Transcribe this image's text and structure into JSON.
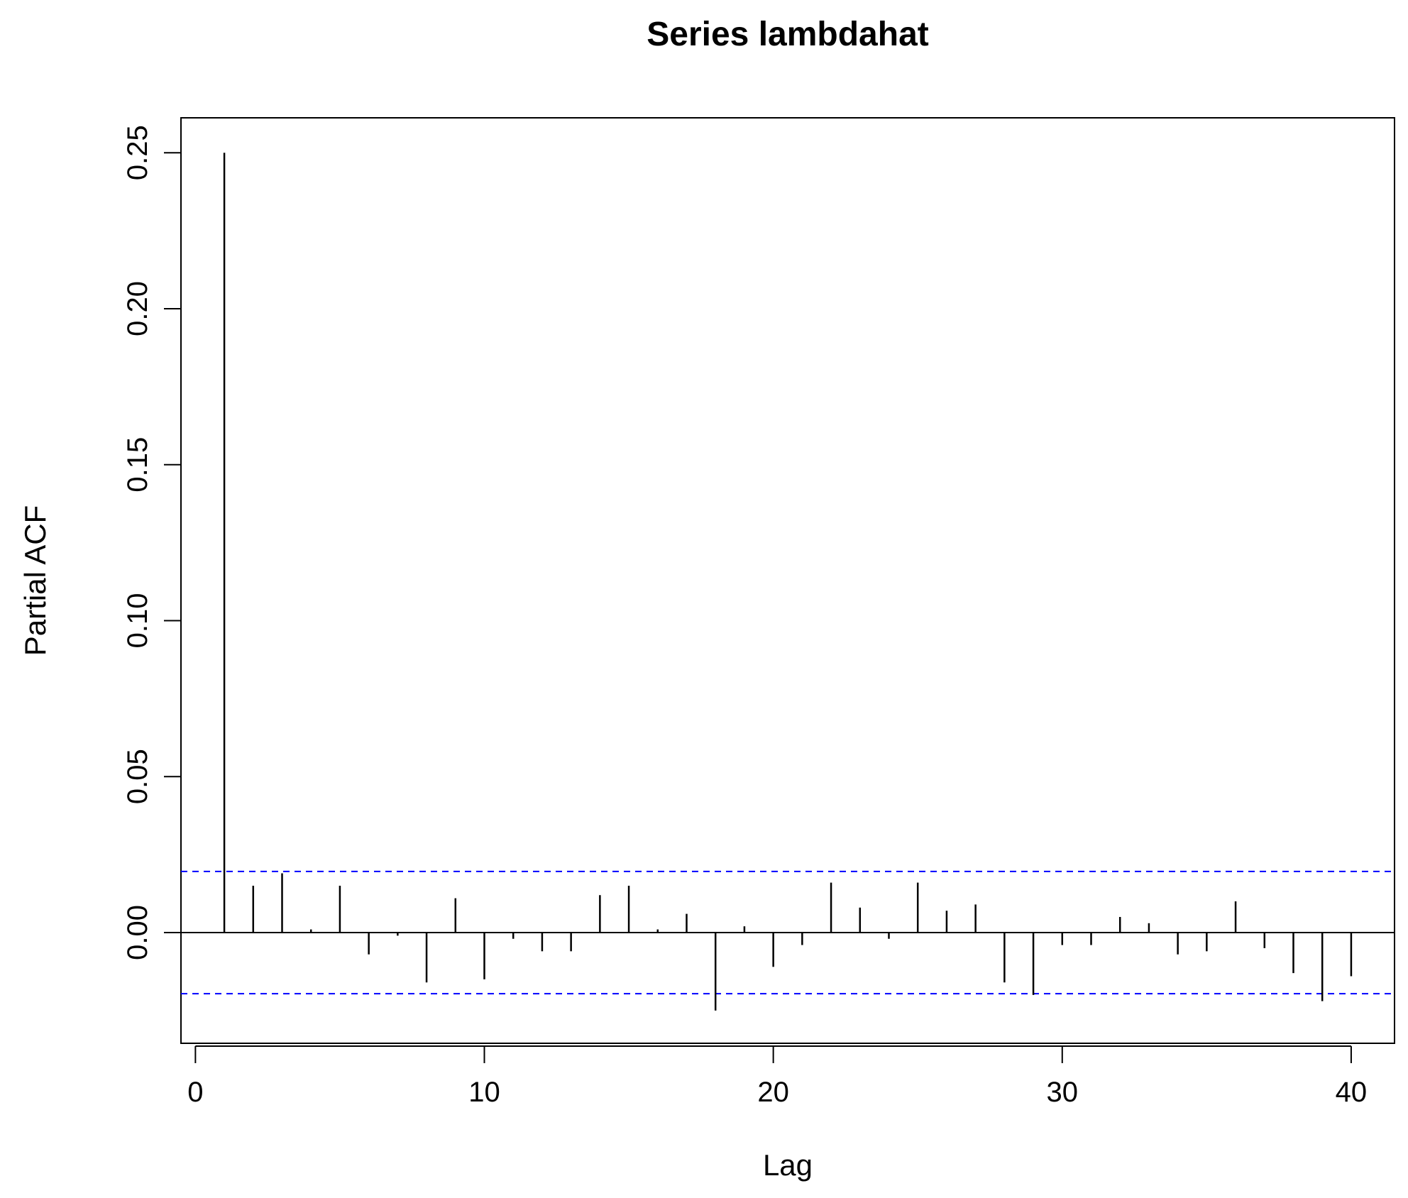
{
  "chart_data": {
    "type": "bar",
    "title": "Series  lambdahat",
    "xlabel": "Lag",
    "ylabel": "Partial ACF",
    "x": [
      1,
      2,
      3,
      4,
      5,
      6,
      7,
      8,
      9,
      10,
      11,
      12,
      13,
      14,
      15,
      16,
      17,
      18,
      19,
      20,
      21,
      22,
      23,
      24,
      25,
      26,
      27,
      28,
      29,
      30,
      31,
      32,
      33,
      34,
      35,
      36,
      37,
      38,
      39,
      40
    ],
    "values": [
      0.25,
      0.015,
      0.019,
      0.001,
      0.015,
      -0.007,
      -0.001,
      -0.016,
      0.011,
      -0.015,
      -0.002,
      -0.006,
      -0.006,
      0.012,
      0.015,
      0.001,
      0.006,
      -0.025,
      0.002,
      -0.011,
      -0.004,
      0.016,
      0.008,
      -0.002,
      0.016,
      0.007,
      0.009,
      -0.016,
      -0.02,
      -0.004,
      -0.004,
      0.005,
      0.003,
      -0.007,
      -0.006,
      0.01,
      -0.005,
      -0.013,
      -0.022,
      -0.014
    ],
    "confidence_bound": 0.0196,
    "xlim": [
      -0.5,
      41.5
    ],
    "ylim": [
      -0.0355,
      0.2612
    ],
    "x_ticks": [
      "0",
      "10",
      "20",
      "30",
      "40"
    ],
    "y_ticks": [
      "0.00",
      "0.05",
      "0.10",
      "0.15",
      "0.20",
      "0.25"
    ],
    "colors": {
      "bars": "#000000",
      "confidence_lines": "#0000ff",
      "zero_line": "#000000"
    },
    "grid": false,
    "legend": "none"
  }
}
